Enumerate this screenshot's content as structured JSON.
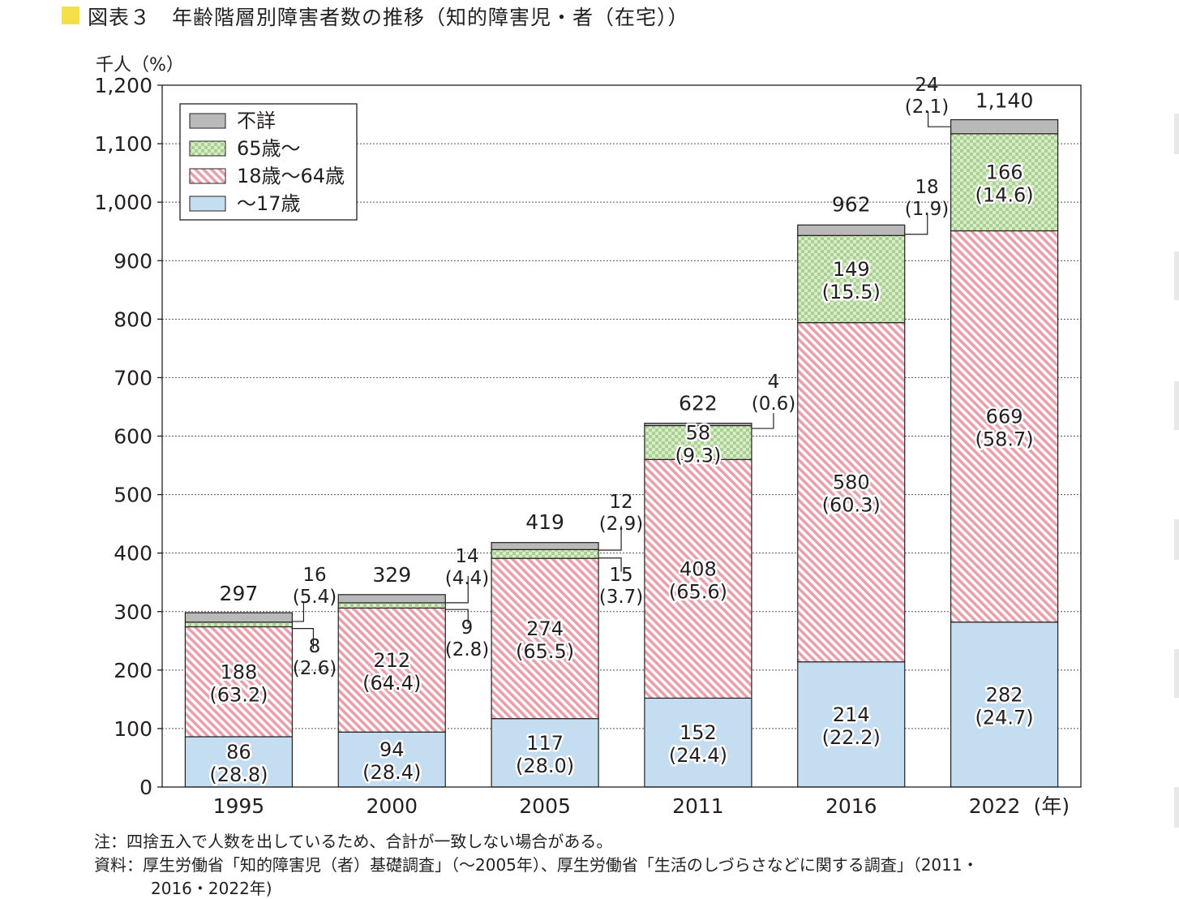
{
  "header": {
    "title": "図表３　年齢階層別障害者数の推移（知的障害児・者（在宅））",
    "unit_label": "千人（%）",
    "mark_color": "#f5e04c"
  },
  "notes": {
    "note_1": "注：四捨五入で人数を出しているため、合計が一致しない場合がある。",
    "note_2": "資料：厚生労働省「知的障害児（者）基礎調査」（～2005年）、厚生労働省「生活のしづらさなどに関する調査」（2011・",
    "note_3": "2016・2022年)"
  },
  "chart_data": {
    "type": "bar",
    "stacked": true,
    "title": "図表３　年齢階層別障害者数の推移（知的障害児・者（在宅））",
    "ylabel": "千人（%）",
    "xlabel": "(年)",
    "ylim": [
      0,
      1200
    ],
    "yticks": [
      0,
      100,
      200,
      300,
      400,
      500,
      600,
      700,
      800,
      900,
      1000,
      1100,
      1200
    ],
    "ytick_labels": [
      "0",
      "100",
      "200",
      "300",
      "400",
      "500",
      "600",
      "700",
      "800",
      "900",
      "1,000",
      "1,100",
      "1,200"
    ],
    "grid": true,
    "legend_position": "top-left",
    "categories": [
      "1995",
      "2000",
      "2005",
      "2011",
      "2016",
      "2022"
    ],
    "x_unit_suffix": "(年)",
    "totals": [
      297,
      329,
      419,
      622,
      962,
      1140
    ],
    "total_labels": [
      "297",
      "329",
      "419",
      "622",
      "962",
      "1,140"
    ],
    "series": [
      {
        "name": "～17歳",
        "color": "#c5ddf0",
        "pattern": "solid",
        "values": [
          86,
          94,
          117,
          152,
          214,
          282
        ],
        "percents": [
          "28.8",
          "28.4",
          "28.0",
          "24.4",
          "22.2",
          "24.7"
        ]
      },
      {
        "name": "18歳～64歳",
        "color": "#e9a0ab",
        "pattern": "hatch",
        "values": [
          188,
          212,
          274,
          408,
          580,
          669
        ],
        "percents": [
          "63.2",
          "64.4",
          "65.5",
          "65.6",
          "60.3",
          "58.7"
        ]
      },
      {
        "name": "65歳～",
        "color": "#b7d9a4",
        "pattern": "check",
        "values": [
          8,
          9,
          15,
          58,
          149,
          166
        ],
        "percents": [
          "2.6",
          "2.8",
          "3.7",
          "9.3",
          "15.5",
          "14.6"
        ]
      },
      {
        "name": "不詳",
        "color": "#b9b9b9",
        "pattern": "solid",
        "values": [
          16,
          14,
          12,
          4,
          18,
          24
        ],
        "percents": [
          "5.4",
          "4.4",
          "2.9",
          "0.6",
          "1.9",
          "2.1"
        ]
      }
    ],
    "legend_order": [
      "不詳",
      "65歳～",
      "18歳～64歳",
      "～17歳"
    ]
  }
}
